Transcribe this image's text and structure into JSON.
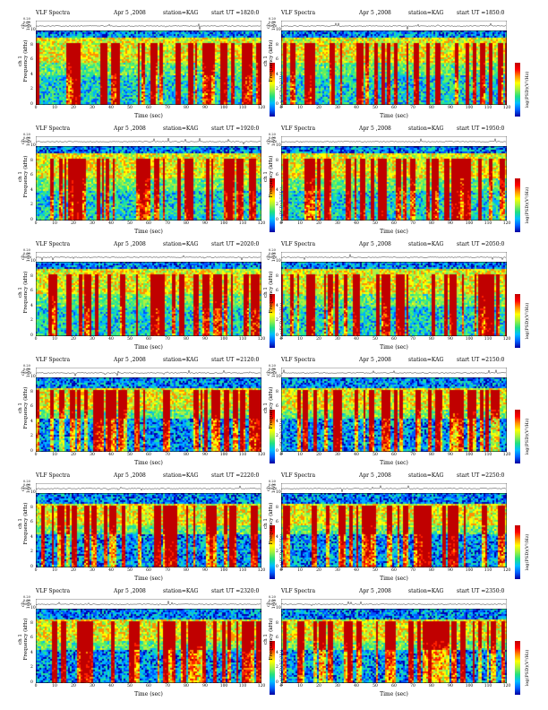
{
  "header": {
    "title": "VLF Spectra",
    "date": "Apr 5 ,2008",
    "station": "station=KAG",
    "start_prefix": "start  UT  ="
  },
  "axes": {
    "wave_label": "ch 1(V)",
    "wave_ticks": [
      "0.20",
      "0.00",
      "-0.20"
    ],
    "freq_label_line1": "ch 1",
    "freq_label_line2": "Frequency  (kHz)",
    "x_label": "Time  (sec)",
    "colorbar_label": "log(PSD)(V²/Hz)"
  },
  "chart_data": {
    "type": "heatmap",
    "x_ticks": [
      "0",
      "10",
      "20",
      "30",
      "40",
      "50",
      "60",
      "70",
      "80",
      "90",
      "100",
      "110",
      "120"
    ],
    "y_ticks": [
      "0",
      "2",
      "4",
      "6",
      "8",
      "10"
    ],
    "xlim": [
      0,
      120
    ],
    "ylim": [
      0,
      10
    ],
    "panels": [
      {
        "start": "1820:0"
      },
      {
        "start": "1850:0"
      },
      {
        "start": "1920:0"
      },
      {
        "start": "1950:0"
      },
      {
        "start": "2020:0"
      },
      {
        "start": "2050:0"
      },
      {
        "start": "2120:0"
      },
      {
        "start": "2150:0"
      },
      {
        "start": "2220:0"
      },
      {
        "start": "2250:0"
      },
      {
        "start": "2320:0"
      },
      {
        "start": "2350:0"
      }
    ]
  }
}
